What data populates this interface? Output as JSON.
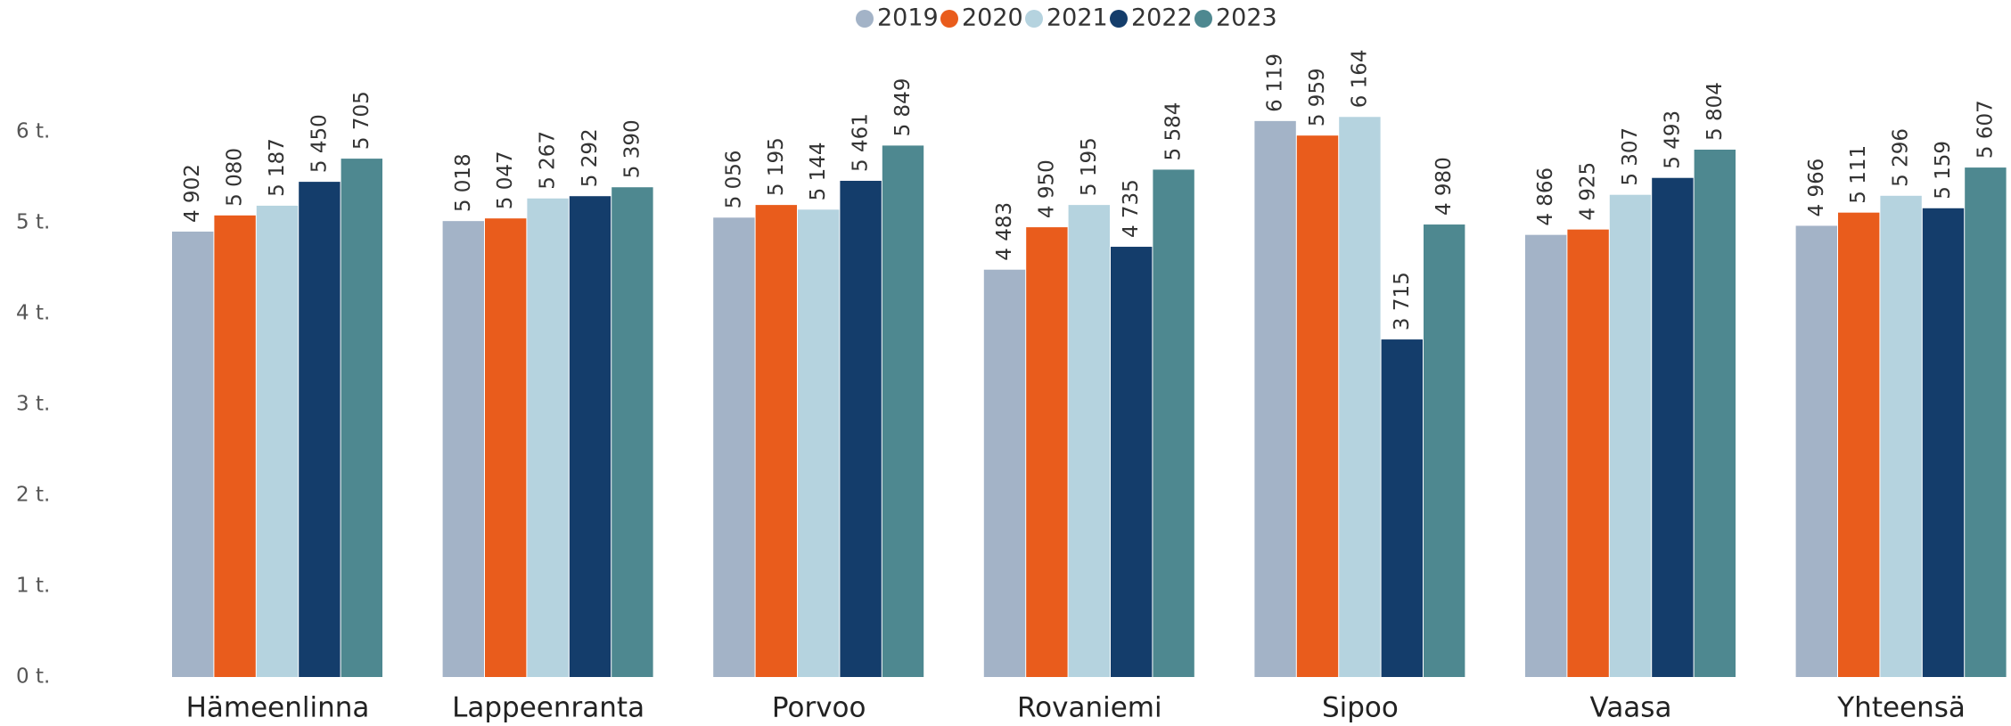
{
  "chart_data": {
    "type": "bar",
    "legend": "top",
    "grid": false,
    "categories": [
      "Hämeenlinna",
      "Lappeenranta",
      "Porvoo",
      "Rovaniemi",
      "Sipoo",
      "Vaasa",
      "Yhteensä"
    ],
    "series": [
      {
        "name": "2019",
        "color": "#a3b3c7",
        "values": [
          4902,
          5018,
          5056,
          4483,
          6119,
          4866,
          4966
        ],
        "value_labels": [
          "4 902",
          "5 018",
          "5 056",
          "4 483",
          "6 119",
          "4 866",
          "4 966"
        ]
      },
      {
        "name": "2020",
        "color": "#e95c1c",
        "values": [
          5080,
          5047,
          5195,
          4950,
          5959,
          4925,
          5111
        ],
        "value_labels": [
          "5 080",
          "5 047",
          "5 195",
          "4 950",
          "5 959",
          "4 925",
          "5 111"
        ]
      },
      {
        "name": "2021",
        "color": "#b5d3df",
        "values": [
          5187,
          5267,
          5144,
          5195,
          6164,
          5307,
          5296
        ],
        "value_labels": [
          "5 187",
          "5 267",
          "5 144",
          "5 195",
          "6 164",
          "5 307",
          "5 296"
        ]
      },
      {
        "name": "2022",
        "color": "#143d6b",
        "values": [
          5450,
          5292,
          5461,
          4735,
          3715,
          5493,
          5159
        ],
        "value_labels": [
          "5 450",
          "5 292",
          "5 461",
          "4 735",
          "3 715",
          "5 493",
          "5 159"
        ]
      },
      {
        "name": "2023",
        "color": "#4e8890",
        "values": [
          5705,
          5390,
          5849,
          5584,
          4980,
          5804,
          5607
        ],
        "value_labels": [
          "5 705",
          "5 390",
          "5 849",
          "5 584",
          "4 980",
          "5 804",
          "5 607"
        ]
      }
    ],
    "ylim": [
      0,
      6500
    ],
    "yticks": [
      {
        "value": 0,
        "label": "0 t."
      },
      {
        "value": 1000,
        "label": "1 t."
      },
      {
        "value": 2000,
        "label": "2 t."
      },
      {
        "value": 3000,
        "label": "3 t."
      },
      {
        "value": 4000,
        "label": "4 t."
      },
      {
        "value": 5000,
        "label": "5 t."
      },
      {
        "value": 6000,
        "label": "6 t."
      }
    ]
  }
}
